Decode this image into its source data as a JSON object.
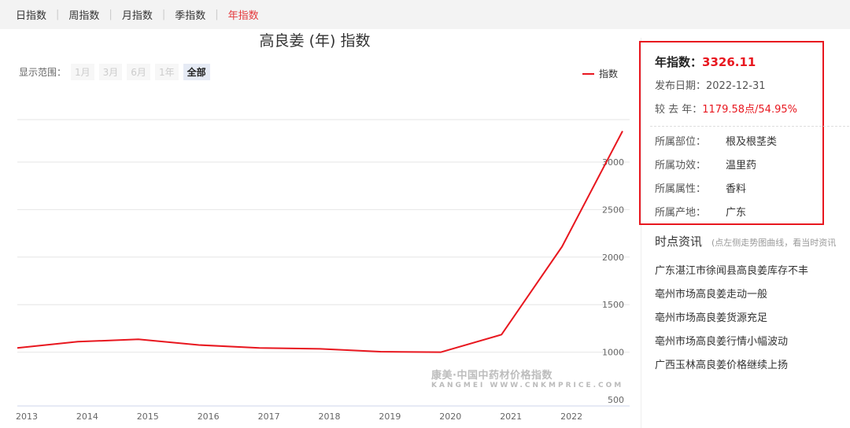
{
  "tabs": [
    {
      "label": "日指数",
      "active": false
    },
    {
      "label": "周指数",
      "active": false
    },
    {
      "label": "月指数",
      "active": false
    },
    {
      "label": "季指数",
      "active": false
    },
    {
      "label": "年指数",
      "active": true
    }
  ],
  "chart": {
    "range_label": "显示范围：",
    "range_buttons": [
      {
        "label": "1月",
        "active": false
      },
      {
        "label": "3月",
        "active": false
      },
      {
        "label": "6月",
        "active": false
      },
      {
        "label": "1年",
        "active": false
      },
      {
        "label": "全部",
        "active": true
      }
    ],
    "watermark_main": "康美·中国中药材价格指数",
    "watermark_sub": "KANGMEI WWW.CNKMPRICE.COM"
  },
  "chart_data": {
    "type": "line",
    "title": "高良姜 (年) 指数",
    "series": [
      {
        "name": "指数",
        "color": "#e8171f",
        "values": [
          1045,
          1110,
          1135,
          1075,
          1045,
          1035,
          1005,
          1000,
          1185,
          2110,
          3326.11
        ]
      }
    ],
    "x": [
      "2013",
      "2014",
      "2015",
      "2016",
      "2017",
      "2018",
      "2019",
      "2020",
      "2021",
      "2022",
      "2023"
    ],
    "x_tick_labels": [
      "2013",
      "2014",
      "2015",
      "2016",
      "2017",
      "2018",
      "2019",
      "2020",
      "2021",
      "2022"
    ],
    "y_ticks": [
      500,
      1000,
      1500,
      2000,
      2500,
      3000
    ],
    "ylim": [
      500,
      3000
    ],
    "grid": true,
    "legend": "top-right"
  },
  "info": {
    "title_label": "年指数：",
    "title_value": "3326.11",
    "date_label": "发布日期：",
    "date_value": "2022-12-31",
    "change_label": "较 去 年：",
    "change_value": "1179.58点/54.95%",
    "attributes": [
      {
        "key": "所属部位：",
        "value": "根及根茎类"
      },
      {
        "key": "所属功效：",
        "value": "温里药"
      },
      {
        "key": "所属属性：",
        "value": "香料"
      },
      {
        "key": "所属产地：",
        "value": "广东"
      }
    ]
  },
  "news": {
    "heading": "时点资讯",
    "hint": "(点左侧走势图曲线，看当时资讯",
    "items": [
      "广东湛江市徐闻县高良姜库存不丰",
      "亳州市场高良姜走动一般",
      "亳州市场高良姜货源充足",
      "亳州市场高良姜行情小幅波动",
      "广西玉林高良姜价格继续上扬"
    ]
  },
  "colors": {
    "accent": "#e8171f",
    "grid": "#e6e6e6"
  }
}
